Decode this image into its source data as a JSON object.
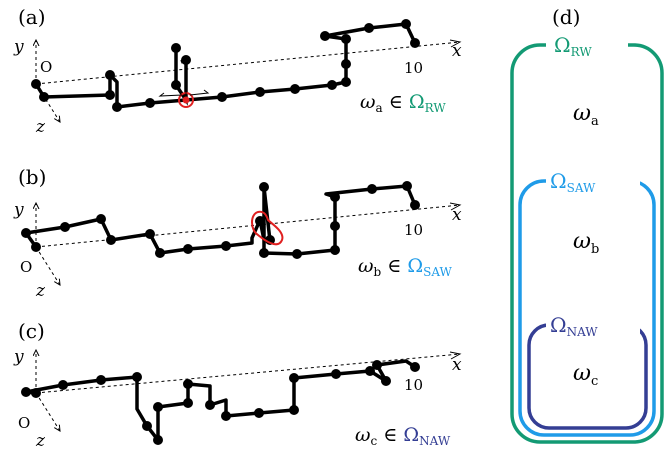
{
  "panels": [
    {
      "label": "(a)",
      "walk": "ω",
      "walk_sub": "a",
      "member": " ∈ ",
      "set": "Ω",
      "set_sub": "RW",
      "set_color": "#139a74"
    },
    {
      "label": "(b)",
      "walk": "ω",
      "walk_sub": "b",
      "member": " ∈ ",
      "set": "Ω",
      "set_sub": "SAW",
      "set_color": "#1f9be8"
    },
    {
      "label": "(c)",
      "walk": "ω",
      "walk_sub": "c",
      "member": " ∈ ",
      "set": "Ω",
      "set_sub": "NAW",
      "set_color": "#343e94"
    }
  ],
  "axes": {
    "x": "x",
    "y": "y",
    "z": "z",
    "origin": "O",
    "tick": "10"
  },
  "venn": {
    "label": "(d)",
    "sets": [
      {
        "symbol": "Ω",
        "sub": "RW",
        "member_symbol": "ω",
        "member_sub": "a",
        "color": "#139a74"
      },
      {
        "symbol": "Ω",
        "sub": "SAW",
        "member_symbol": "ω",
        "member_sub": "b",
        "color": "#1f9be8"
      },
      {
        "symbol": "Ω",
        "sub": "NAW",
        "member_symbol": "ω",
        "member_sub": "c",
        "color": "#343e94"
      }
    ]
  },
  "highlight_color": "#e02020"
}
